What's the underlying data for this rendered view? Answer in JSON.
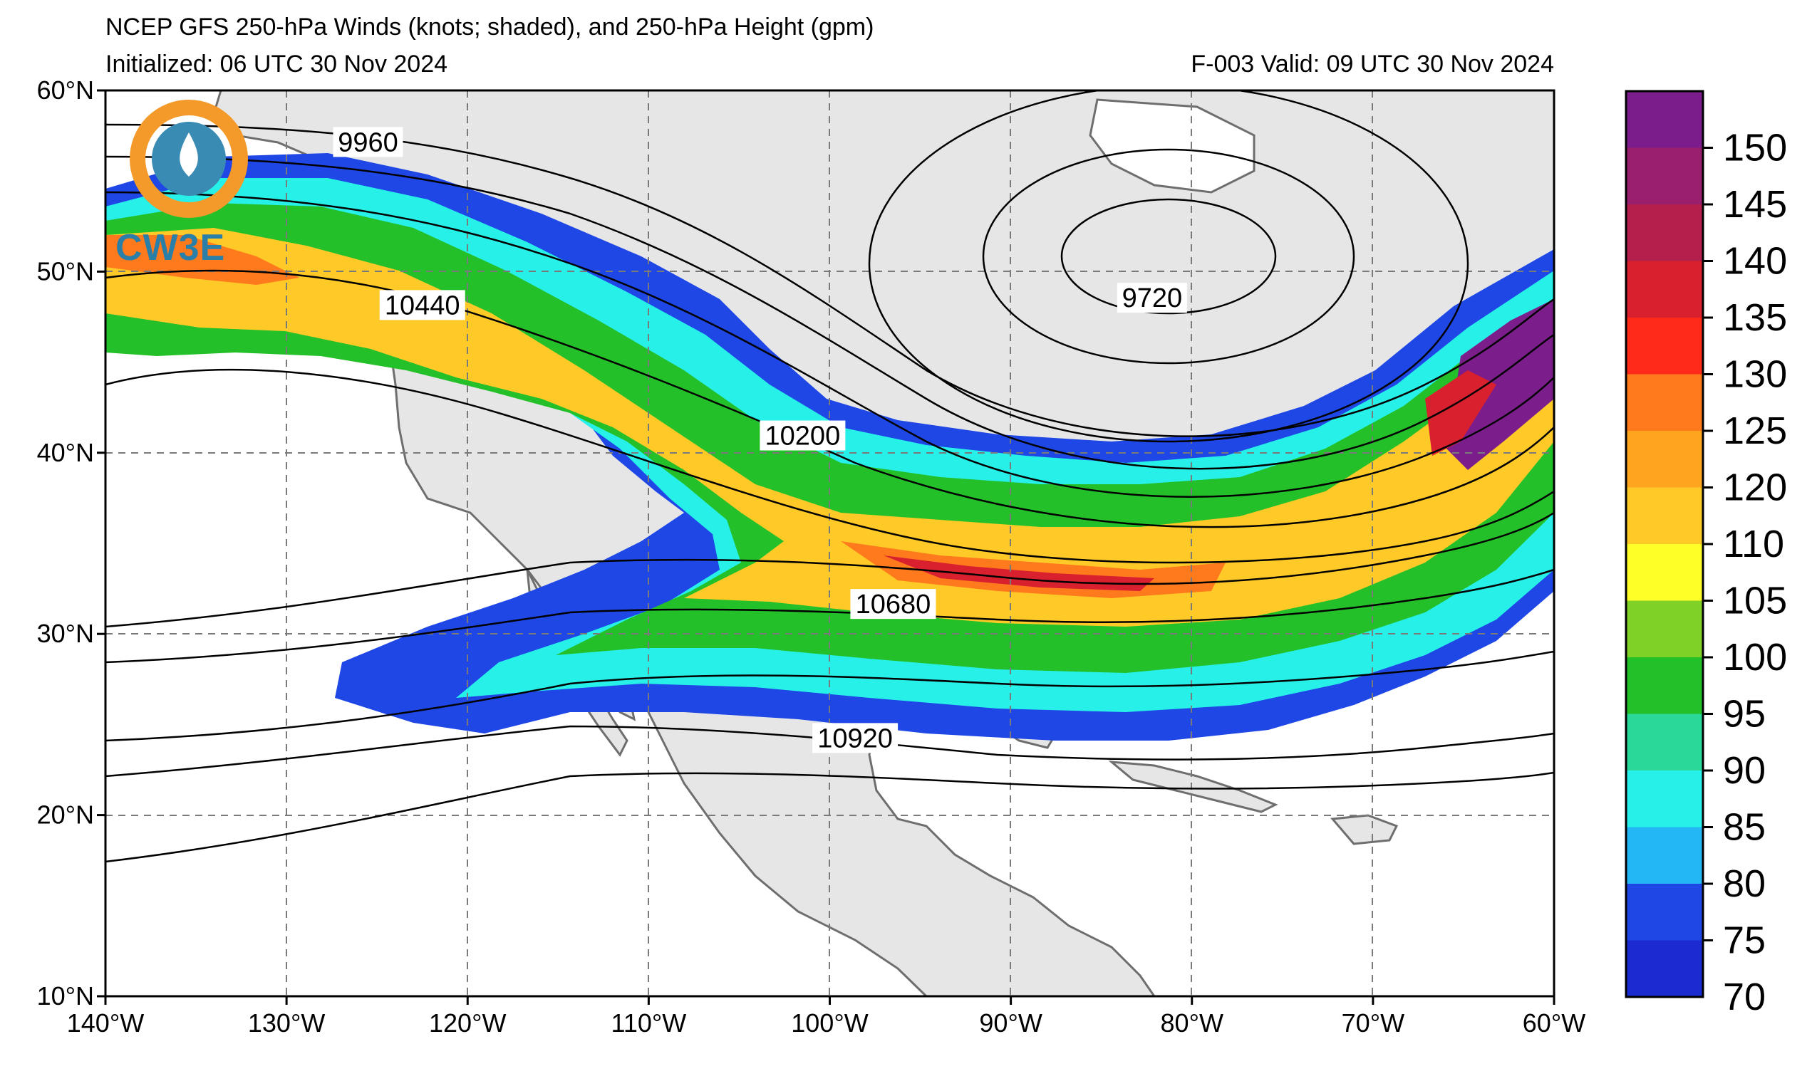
{
  "title": {
    "line1": "NCEP GFS 250-hPa Winds (knots; shaded), and 250-hPa Height (gpm)",
    "line2_left": "Initialized: 06 UTC 30 Nov 2024",
    "line2_right": "F-003  Valid: 09 UTC 30 Nov 2024"
  },
  "logo": {
    "text": "CW3E"
  },
  "map": {
    "lon_range": [
      -140,
      -60
    ],
    "lat_range": [
      10,
      60
    ],
    "lon_ticks": [
      {
        "value": -140,
        "label": "140°W"
      },
      {
        "value": -130,
        "label": "130°W"
      },
      {
        "value": -120,
        "label": "120°W"
      },
      {
        "value": -110,
        "label": "110°W"
      },
      {
        "value": -100,
        "label": "100°W"
      },
      {
        "value": -90,
        "label": "90°W"
      },
      {
        "value": -80,
        "label": "80°W"
      },
      {
        "value": -70,
        "label": "70°W"
      },
      {
        "value": -60,
        "label": "60°W"
      }
    ],
    "lat_ticks": [
      {
        "value": 60,
        "label": "60°N"
      },
      {
        "value": 50,
        "label": "50°N"
      },
      {
        "value": 40,
        "label": "40°N"
      },
      {
        "value": 30,
        "label": "30°N"
      },
      {
        "value": 20,
        "label": "20°N"
      },
      {
        "value": 10,
        "label": "10°N"
      }
    ],
    "gridlines": true,
    "contour_labels": [
      {
        "value": "9960",
        "lon": -125.5,
        "lat": 56.8
      },
      {
        "value": "10440",
        "lon": -122.5,
        "lat": 47.8
      },
      {
        "value": "10200",
        "lon": -101.5,
        "lat": 40.6
      },
      {
        "value": "9720",
        "lon": -82.2,
        "lat": 48.2
      },
      {
        "value": "10680",
        "lon": -96.5,
        "lat": 31.3
      },
      {
        "value": "10920",
        "lon": -98.6,
        "lat": 23.9
      }
    ]
  },
  "colorbar": {
    "ticks": [
      "150",
      "145",
      "140",
      "135",
      "130",
      "125",
      "120",
      "110",
      "105",
      "100",
      "95",
      "90",
      "85",
      "80",
      "75",
      "70"
    ],
    "colors": [
      "#7b1e8c",
      "#9a1f6e",
      "#b51f4b",
      "#d8202f",
      "#ff2a1a",
      "#ff7a1c",
      "#ffa41f",
      "#ffc928",
      "#ffff28",
      "#7fd128",
      "#24c02a",
      "#2ad89a",
      "#27f0e8",
      "#23b8f5",
      "#1f47e6",
      "#1b2bd0"
    ]
  }
}
